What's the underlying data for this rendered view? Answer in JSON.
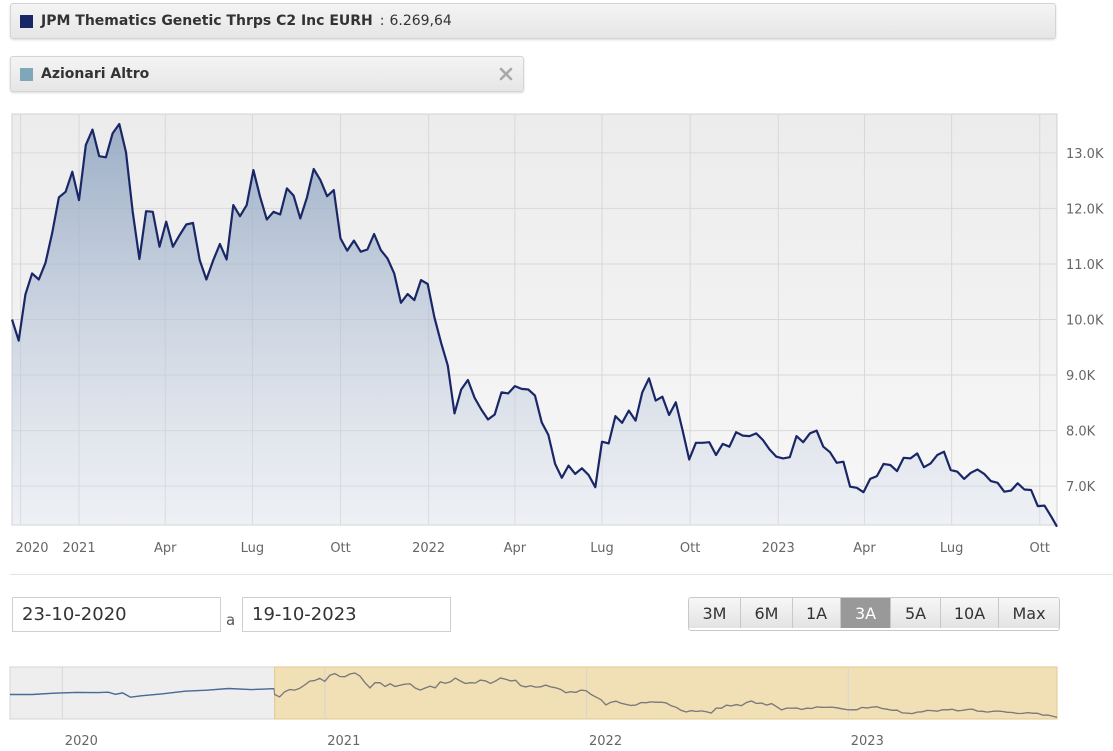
{
  "legend": {
    "fund": {
      "name": "JPM Thematics Genetic Thrps C2 Inc EURH",
      "separator": ":",
      "value": "6.269,64",
      "color": "#1a2766"
    },
    "category": {
      "name": "Azionari Altro",
      "color": "#7fa7b8"
    }
  },
  "range": {
    "from": "23-10-2020",
    "separator": "a",
    "to": "19-10-2023"
  },
  "range_buttons": [
    {
      "label": "3M",
      "active": false
    },
    {
      "label": "6M",
      "active": false
    },
    {
      "label": "1A",
      "active": false
    },
    {
      "label": "3A",
      "active": true
    },
    {
      "label": "5A",
      "active": false
    },
    {
      "label": "10A",
      "active": false
    },
    {
      "label": "Max",
      "active": false
    }
  ],
  "chart_data": {
    "type": "area",
    "title": "",
    "xlabel": "",
    "ylabel": "",
    "x_start": "2020-10-23",
    "x_end": "2023-10-19",
    "x_ticks": [
      {
        "label": "2020",
        "date": "2020-11-01"
      },
      {
        "label": "2021",
        "date": "2021-01-01"
      },
      {
        "label": "Apr",
        "date": "2021-04-01"
      },
      {
        "label": "Lug",
        "date": "2021-07-01"
      },
      {
        "label": "Ott",
        "date": "2021-10-01"
      },
      {
        "label": "2022",
        "date": "2022-01-01"
      },
      {
        "label": "Apr",
        "date": "2022-04-01"
      },
      {
        "label": "Lug",
        "date": "2022-07-01"
      },
      {
        "label": "Ott",
        "date": "2022-10-01"
      },
      {
        "label": "2023",
        "date": "2023-01-01"
      },
      {
        "label": "Apr",
        "date": "2023-04-01"
      },
      {
        "label": "Lug",
        "date": "2023-07-01"
      },
      {
        "label": "Ott",
        "date": "2023-10-01"
      }
    ],
    "y_ticks": [
      {
        "label": "7.0K",
        "value": 7000
      },
      {
        "label": "8.0K",
        "value": 8000
      },
      {
        "label": "9.0K",
        "value": 9000
      },
      {
        "label": "10.0K",
        "value": 10000
      },
      {
        "label": "11.0K",
        "value": 11000
      },
      {
        "label": "12.0K",
        "value": 12000
      },
      {
        "label": "13.0K",
        "value": 13000
      }
    ],
    "ylim": [
      6300,
      13700
    ],
    "grid": true,
    "series": [
      {
        "name": "JPM Thematics Genetic Thrps C2 Inc EURH",
        "color": "#1a2766",
        "points": [
          [
            "2020-10-23",
            10000
          ],
          [
            "2020-10-30",
            9620
          ],
          [
            "2020-11-06",
            10450
          ],
          [
            "2020-11-13",
            10830
          ],
          [
            "2020-11-20",
            10720
          ],
          [
            "2020-11-27",
            11020
          ],
          [
            "2020-12-04",
            11560
          ],
          [
            "2020-12-11",
            12200
          ],
          [
            "2020-12-18",
            12300
          ],
          [
            "2020-12-25",
            12660
          ],
          [
            "2021-01-01",
            12150
          ],
          [
            "2021-01-08",
            13140
          ],
          [
            "2021-01-15",
            13420
          ],
          [
            "2021-01-22",
            12940
          ],
          [
            "2021-01-29",
            12920
          ],
          [
            "2021-02-05",
            13350
          ],
          [
            "2021-02-12",
            13520
          ],
          [
            "2021-02-19",
            13010
          ],
          [
            "2021-02-26",
            11940
          ],
          [
            "2021-03-05",
            11090
          ],
          [
            "2021-03-12",
            11950
          ],
          [
            "2021-03-19",
            11940
          ],
          [
            "2021-03-26",
            11310
          ],
          [
            "2021-04-02",
            11760
          ],
          [
            "2021-04-09",
            11310
          ],
          [
            "2021-04-16",
            11520
          ],
          [
            "2021-04-23",
            11710
          ],
          [
            "2021-04-30",
            11740
          ],
          [
            "2021-05-07",
            11070
          ],
          [
            "2021-05-14",
            10720
          ],
          [
            "2021-05-21",
            11060
          ],
          [
            "2021-05-28",
            11360
          ],
          [
            "2021-06-04",
            11080
          ],
          [
            "2021-06-11",
            12060
          ],
          [
            "2021-06-18",
            11860
          ],
          [
            "2021-06-25",
            12060
          ],
          [
            "2021-07-02",
            12690
          ],
          [
            "2021-07-09",
            12210
          ],
          [
            "2021-07-16",
            11800
          ],
          [
            "2021-07-23",
            11940
          ],
          [
            "2021-07-30",
            11890
          ],
          [
            "2021-08-06",
            12360
          ],
          [
            "2021-08-13",
            12230
          ],
          [
            "2021-08-20",
            11820
          ],
          [
            "2021-08-27",
            12200
          ],
          [
            "2021-09-03",
            12710
          ],
          [
            "2021-09-10",
            12510
          ],
          [
            "2021-09-17",
            12220
          ],
          [
            "2021-09-24",
            12330
          ],
          [
            "2021-10-01",
            11460
          ],
          [
            "2021-10-08",
            11240
          ],
          [
            "2021-10-15",
            11420
          ],
          [
            "2021-10-22",
            11220
          ],
          [
            "2021-10-29",
            11260
          ],
          [
            "2021-11-05",
            11540
          ],
          [
            "2021-11-12",
            11250
          ],
          [
            "2021-11-19",
            11100
          ],
          [
            "2021-11-26",
            10830
          ],
          [
            "2021-12-03",
            10300
          ],
          [
            "2021-12-10",
            10460
          ],
          [
            "2021-12-17",
            10350
          ],
          [
            "2021-12-24",
            10710
          ],
          [
            "2021-12-31",
            10640
          ],
          [
            "2022-01-07",
            10040
          ],
          [
            "2022-01-14",
            9580
          ],
          [
            "2022-01-21",
            9170
          ],
          [
            "2022-01-28",
            8310
          ],
          [
            "2022-02-04",
            8740
          ],
          [
            "2022-02-11",
            8910
          ],
          [
            "2022-02-18",
            8590
          ],
          [
            "2022-02-25",
            8380
          ],
          [
            "2022-03-04",
            8200
          ],
          [
            "2022-03-11",
            8290
          ],
          [
            "2022-03-18",
            8690
          ],
          [
            "2022-03-25",
            8670
          ],
          [
            "2022-04-01",
            8800
          ],
          [
            "2022-04-08",
            8750
          ],
          [
            "2022-04-15",
            8740
          ],
          [
            "2022-04-22",
            8630
          ],
          [
            "2022-04-29",
            8150
          ],
          [
            "2022-05-06",
            7920
          ],
          [
            "2022-05-13",
            7400
          ],
          [
            "2022-05-20",
            7150
          ],
          [
            "2022-05-27",
            7370
          ],
          [
            "2022-06-03",
            7220
          ],
          [
            "2022-06-10",
            7320
          ],
          [
            "2022-06-17",
            7200
          ],
          [
            "2022-06-24",
            6980
          ],
          [
            "2022-07-01",
            7800
          ],
          [
            "2022-07-08",
            7770
          ],
          [
            "2022-07-15",
            8260
          ],
          [
            "2022-07-22",
            8140
          ],
          [
            "2022-07-29",
            8360
          ],
          [
            "2022-08-05",
            8180
          ],
          [
            "2022-08-12",
            8690
          ],
          [
            "2022-08-19",
            8940
          ],
          [
            "2022-08-26",
            8540
          ],
          [
            "2022-09-02",
            8610
          ],
          [
            "2022-09-09",
            8280
          ],
          [
            "2022-09-16",
            8510
          ],
          [
            "2022-09-23",
            8010
          ],
          [
            "2022-09-30",
            7480
          ],
          [
            "2022-10-07",
            7780
          ],
          [
            "2022-10-14",
            7780
          ],
          [
            "2022-10-21",
            7790
          ],
          [
            "2022-10-28",
            7560
          ],
          [
            "2022-11-04",
            7760
          ],
          [
            "2022-11-11",
            7710
          ],
          [
            "2022-11-18",
            7970
          ],
          [
            "2022-11-25",
            7910
          ],
          [
            "2022-12-02",
            7900
          ],
          [
            "2022-12-09",
            7950
          ],
          [
            "2022-12-16",
            7830
          ],
          [
            "2022-12-23",
            7660
          ],
          [
            "2022-12-30",
            7530
          ],
          [
            "2023-01-06",
            7500
          ],
          [
            "2023-01-13",
            7520
          ],
          [
            "2023-01-20",
            7900
          ],
          [
            "2023-01-27",
            7790
          ],
          [
            "2023-02-03",
            7950
          ],
          [
            "2023-02-10",
            8000
          ],
          [
            "2023-02-17",
            7710
          ],
          [
            "2023-02-24",
            7610
          ],
          [
            "2023-03-03",
            7420
          ],
          [
            "2023-03-10",
            7440
          ],
          [
            "2023-03-17",
            6990
          ],
          [
            "2023-03-24",
            6970
          ],
          [
            "2023-03-31",
            6890
          ],
          [
            "2023-04-07",
            7130
          ],
          [
            "2023-04-14",
            7180
          ],
          [
            "2023-04-21",
            7400
          ],
          [
            "2023-04-28",
            7380
          ],
          [
            "2023-05-05",
            7270
          ],
          [
            "2023-05-12",
            7510
          ],
          [
            "2023-05-19",
            7500
          ],
          [
            "2023-05-26",
            7590
          ],
          [
            "2023-06-02",
            7340
          ],
          [
            "2023-06-09",
            7410
          ],
          [
            "2023-06-16",
            7560
          ],
          [
            "2023-06-23",
            7620
          ],
          [
            "2023-06-30",
            7290
          ],
          [
            "2023-07-07",
            7260
          ],
          [
            "2023-07-14",
            7130
          ],
          [
            "2023-07-21",
            7240
          ],
          [
            "2023-07-28",
            7300
          ],
          [
            "2023-08-04",
            7220
          ],
          [
            "2023-08-11",
            7090
          ],
          [
            "2023-08-18",
            7060
          ],
          [
            "2023-08-25",
            6900
          ],
          [
            "2023-09-01",
            6920
          ],
          [
            "2023-09-08",
            7050
          ],
          [
            "2023-09-15",
            6940
          ],
          [
            "2023-09-22",
            6930
          ],
          [
            "2023-09-29",
            6640
          ],
          [
            "2023-10-06",
            6650
          ],
          [
            "2023-10-13",
            6450
          ],
          [
            "2023-10-19",
            6270
          ]
        ]
      }
    ]
  },
  "navigator": {
    "x_ticks": [
      {
        "label": "2020",
        "date": "2020-01-01"
      },
      {
        "label": "2021",
        "date": "2021-01-01"
      },
      {
        "label": "2022",
        "date": "2022-01-01"
      },
      {
        "label": "2023",
        "date": "2023-01-01"
      }
    ],
    "x_start": "2019-10-20",
    "x_end": "2023-10-19",
    "selection": [
      "2020-10-23",
      "2023-10-19"
    ],
    "history": [
      [
        "2019-10-20",
        10000
      ],
      [
        "2019-11-20",
        10000
      ],
      [
        "2019-12-20",
        10220
      ],
      [
        "2020-01-20",
        10340
      ],
      [
        "2020-02-20",
        10320
      ],
      [
        "2020-03-05",
        10380
      ],
      [
        "2020-03-15",
        10030
      ],
      [
        "2020-03-25",
        10260
      ],
      [
        "2020-04-05",
        9560
      ],
      [
        "2020-04-20",
        9800
      ],
      [
        "2020-05-20",
        10120
      ],
      [
        "2020-06-20",
        10540
      ],
      [
        "2020-07-20",
        10710
      ],
      [
        "2020-08-20",
        10980
      ],
      [
        "2020-09-20",
        10800
      ],
      [
        "2020-10-22",
        10950
      ]
    ]
  }
}
